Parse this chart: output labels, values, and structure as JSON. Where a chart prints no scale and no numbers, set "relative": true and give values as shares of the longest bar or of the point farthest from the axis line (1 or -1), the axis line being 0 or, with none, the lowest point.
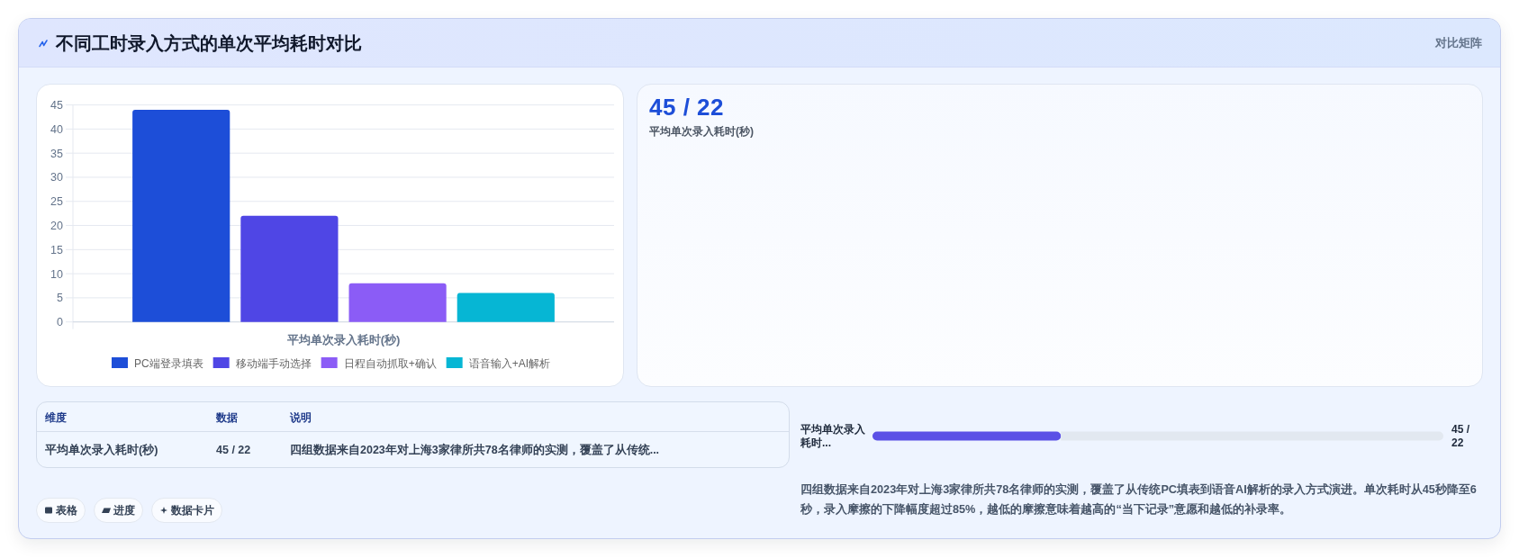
{
  "chart_data": [
    {
      "type": "other",
      "title": "不同工时录入方式的单次平均耗时对比",
      "annotations": [
        "对比矩阵"
      ]
    },
    {
      "type": "bar",
      "categories": [
        "平均单次录入耗时(秒)"
      ],
      "series": [
        {
          "name": "PC端登录填表",
          "color": "#1d4ed8",
          "values": [
            44
          ]
        },
        {
          "name": "移动端手动选择",
          "color": "#4f46e5",
          "values": [
            22
          ]
        },
        {
          "name": "日程自动抓取+确认",
          "color": "#8b5cf6",
          "values": [
            8
          ]
        },
        {
          "name": "语音输入+AI解析",
          "color": "#06b6d4",
          "values": [
            6
          ]
        }
      ],
      "ylim": [
        0,
        45
      ],
      "yticks": [
        0,
        5,
        10,
        15,
        20,
        25,
        30,
        35,
        40,
        45
      ],
      "grid": "y",
      "legend": "bottom"
    },
    {
      "type": "other",
      "title": "45 / 22",
      "subtitle": "平均单次录入耗时(秒)"
    },
    {
      "type": "other",
      "annotations": [
        "维度",
        "数据",
        "说明",
        "平均单次录入耗时(秒)",
        "45 / 22",
        "四组数据来自2023年对上海3家律所共78名律师的实测，覆盖了从传统..."
      ]
    },
    {
      "type": "bar",
      "orientation": "horizontal",
      "stacked": true,
      "relative": true,
      "categories": [
        "平均单次录入耗时..."
      ],
      "series": [
        {
          "color": "#5b50e6",
          "values": [
            0.33
          ]
        },
        {
          "color": "#e2e8f0",
          "values": [
            0.67
          ]
        }
      ],
      "annotations": [
        "45 / 22",
        "四组数据来自2023年对上海3家律所共78名律师的实测，覆盖了从传统PC填表到语音AI解析的录入方式演进。单次耗时从45秒降至6秒，录入摩擦的下降幅度超过85%，越低的摩擦意味着越高的“当下记录”意愿和越低的补录率。"
      ]
    },
    {
      "type": "other",
      "annotations": [
        "表格",
        "进度",
        "数据卡片"
      ]
    }
  ]
}
